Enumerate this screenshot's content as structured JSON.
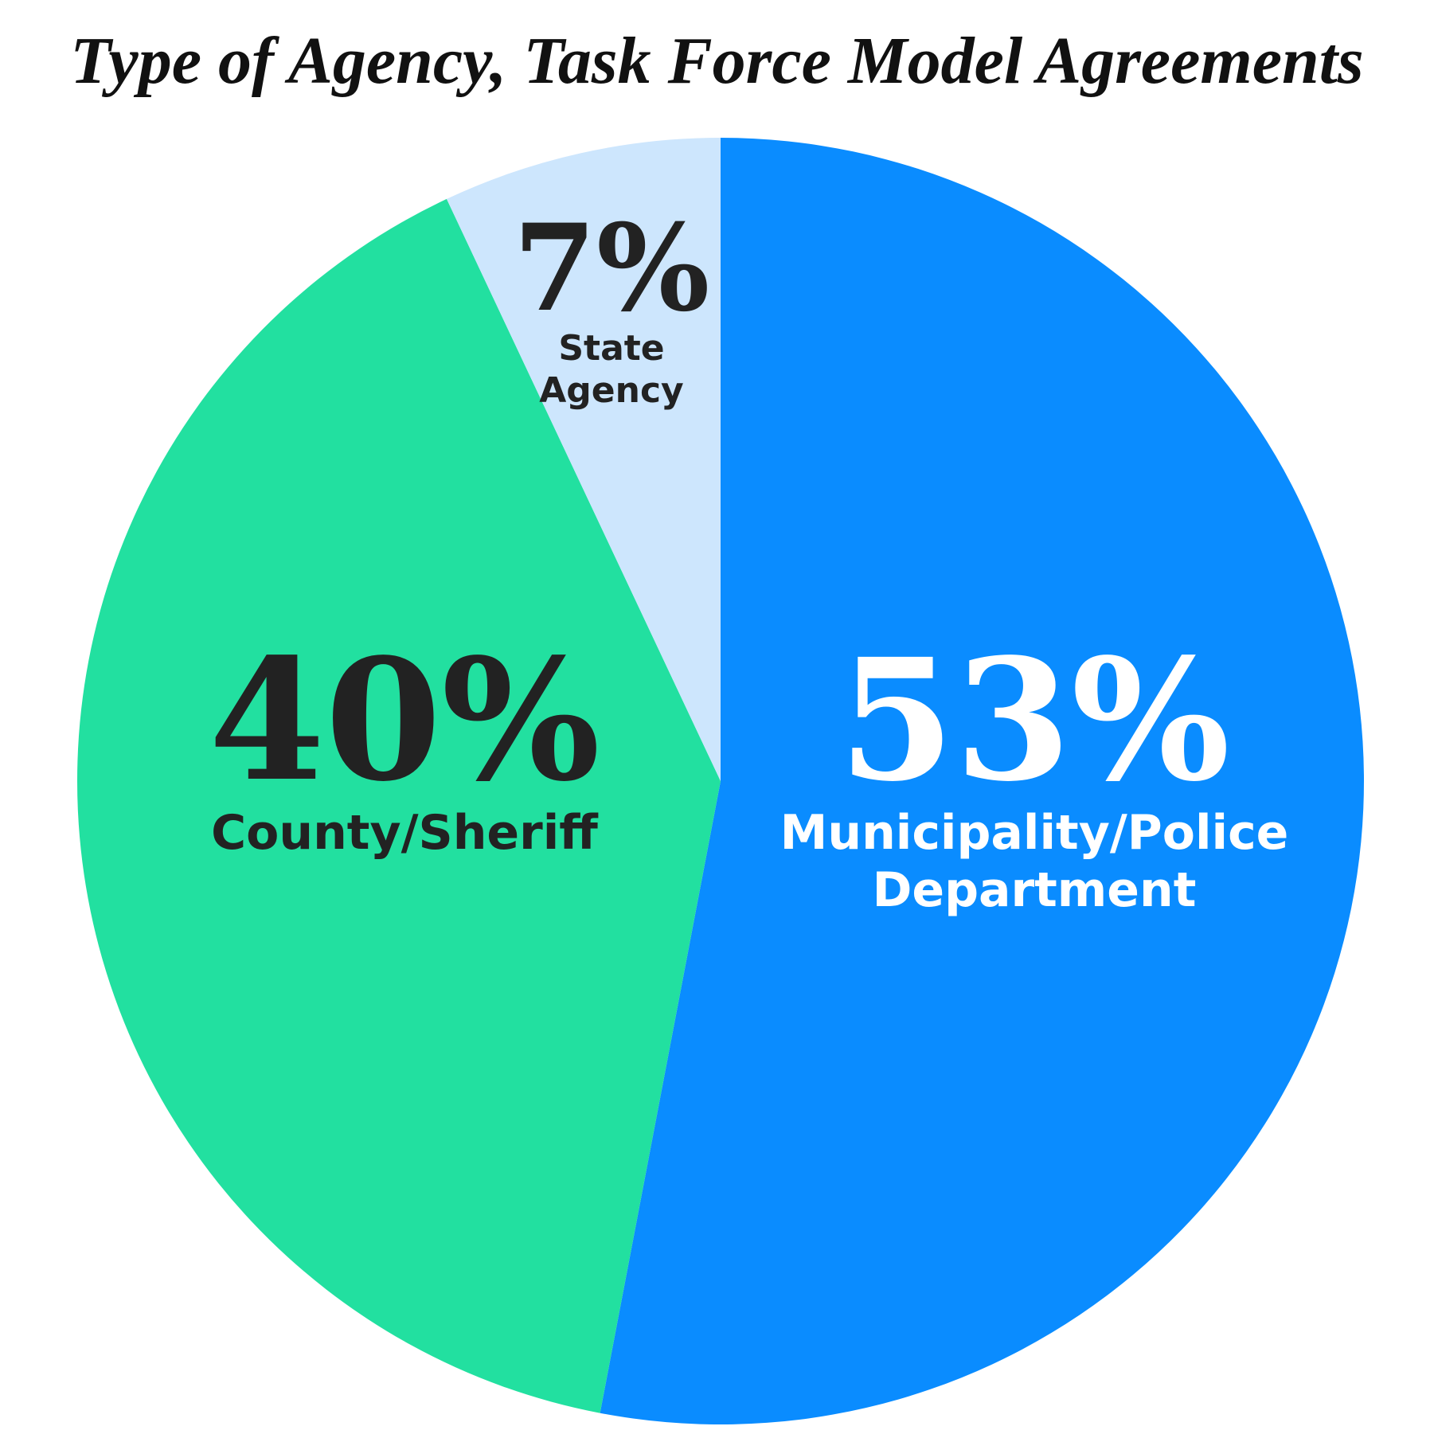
{
  "chart_data": {
    "type": "pie",
    "title": "Type of Agency, Task Force Model Agreements",
    "categories": [
      "Municipality/Police Department",
      "County/Sheriff",
      "State Agency"
    ],
    "values": [
      53,
      40,
      7
    ],
    "value_labels": [
      "53%",
      "40%",
      "7%"
    ],
    "colors": [
      "#0a8cff",
      "#22e0a0",
      "#cde6fd"
    ],
    "label_colors": [
      "#ffffff",
      "#222222",
      "#222222"
    ]
  }
}
